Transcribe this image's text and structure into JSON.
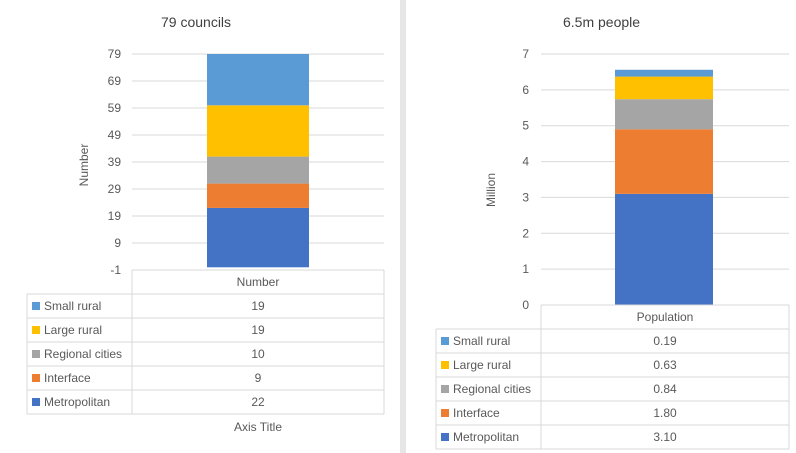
{
  "chart_data": [
    {
      "type": "bar",
      "stacked": true,
      "title": "79 councils",
      "ylabel": "Number",
      "xlabel": "Axis Title",
      "ylim": [
        -1,
        79
      ],
      "yticks": [
        "79",
        "69",
        "59",
        "49",
        "39",
        "29",
        "19",
        "9",
        "-1"
      ],
      "categories": [
        "Number"
      ],
      "series": [
        {
          "name": "Metropolitan",
          "values": [
            22
          ],
          "color": "#4472C4",
          "label": "22"
        },
        {
          "name": "Interface",
          "values": [
            9
          ],
          "color": "#ED7D31",
          "label": "9"
        },
        {
          "name": "Regional cities",
          "values": [
            10
          ],
          "color": "#A5A5A5",
          "label": "10"
        },
        {
          "name": "Large rural",
          "values": [
            19
          ],
          "color": "#FFC000",
          "label": "19"
        },
        {
          "name": "Small rural",
          "values": [
            19
          ],
          "color": "#5B9BD5",
          "label": "19"
        }
      ],
      "legend_position": "data-table"
    },
    {
      "type": "bar",
      "stacked": true,
      "title": "6.5m people",
      "ylabel": "Million",
      "xlabel": "",
      "ylim": [
        0,
        7
      ],
      "yticks": [
        "7",
        "6",
        "5",
        "4",
        "3",
        "2",
        "1",
        "0"
      ],
      "categories": [
        "Population"
      ],
      "series": [
        {
          "name": "Metropolitan",
          "values": [
            3.1
          ],
          "color": "#4472C4",
          "label": "3.10"
        },
        {
          "name": "Interface",
          "values": [
            1.8
          ],
          "color": "#ED7D31",
          "label": "1.80"
        },
        {
          "name": "Regional cities",
          "values": [
            0.84
          ],
          "color": "#A5A5A5",
          "label": "0.84"
        },
        {
          "name": "Large rural",
          "values": [
            0.63
          ],
          "color": "#FFC000",
          "label": "0.63"
        },
        {
          "name": "Small rural",
          "values": [
            0.19
          ],
          "color": "#5B9BD5",
          "label": "0.19"
        }
      ],
      "legend_position": "data-table"
    }
  ]
}
